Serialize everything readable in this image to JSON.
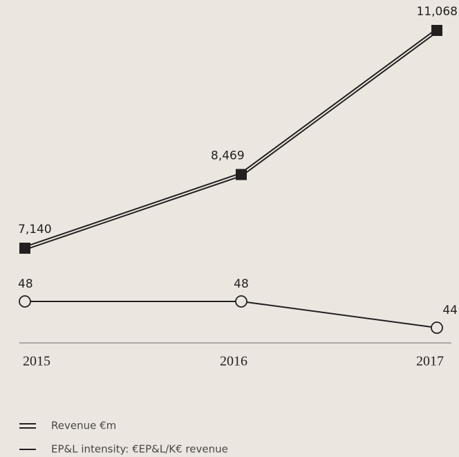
{
  "chart_data": {
    "type": "line",
    "categories": [
      "2015",
      "2016",
      "2017"
    ],
    "series": [
      {
        "name": "Revenue €m",
        "color": "#231f20",
        "values": [
          7140,
          8469,
          11068
        ],
        "value_labels": [
          "7,140",
          "8,469",
          "11,068"
        ],
        "style": "double",
        "marker": "square"
      },
      {
        "name": "EP&L intensity: €EP&L/K€ revenue",
        "color": "#231f20",
        "values": [
          48,
          48,
          44
        ],
        "axis": "y2",
        "style": "single",
        "marker": "circle"
      }
    ]
  }
}
